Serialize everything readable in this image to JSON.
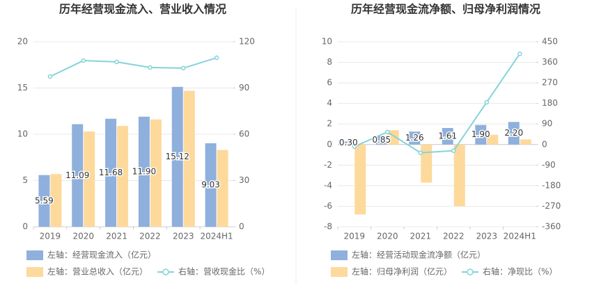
{
  "chart_data": [
    {
      "type": "bar-line",
      "title": "历年经营现金流入、营业收入情况",
      "categories": [
        "2019",
        "2020",
        "2021",
        "2022",
        "2023",
        "2024H1"
      ],
      "series": [
        {
          "name": "左轴：经营现金流入（亿元）",
          "type": "bar",
          "color": "#8fb0dd",
          "values": [
            5.59,
            11.09,
            11.68,
            11.9,
            15.12,
            9.03
          ],
          "value_labels": [
            "5.59",
            "11.09",
            "11.68",
            "11.90",
            "15.12",
            "9.03"
          ]
        },
        {
          "name": "左轴：营业总收入（亿元）",
          "type": "bar",
          "color": "#fdd99b",
          "values": [
            5.7,
            10.3,
            10.9,
            11.6,
            14.7,
            8.3
          ]
        },
        {
          "name": "右轴：营收现金比（%）",
          "type": "line",
          "axis": "y2",
          "color": "#84d3da",
          "values": [
            97.4,
            107.8,
            106.9,
            103.3,
            102.9,
            109.6
          ]
        }
      ],
      "ylim": [
        0,
        20
      ],
      "yticks": [
        0,
        5,
        10,
        15,
        20
      ],
      "y2lim": [
        0,
        120
      ],
      "y2ticks": [
        0,
        30,
        60,
        90,
        120
      ],
      "grid": true
    },
    {
      "type": "bar-line",
      "title": "历年经营现金流净额、归母净利润情况",
      "categories": [
        "2019",
        "2020",
        "2021",
        "2022",
        "2023",
        "2024H1"
      ],
      "series": [
        {
          "name": "左轴：经营活动现金流净额（亿元）",
          "type": "bar",
          "color": "#8fb0dd",
          "values": [
            0.3,
            0.85,
            1.26,
            1.61,
            1.9,
            2.2
          ],
          "value_labels": [
            "0.30",
            "0.85",
            "1.26",
            "1.61",
            "1.90",
            "2.20"
          ]
        },
        {
          "name": "左轴：归母净利润（亿元）",
          "type": "bar",
          "color": "#fdd99b",
          "values": [
            -6.8,
            1.4,
            -3.7,
            -6.0,
            0.95,
            0.5
          ]
        },
        {
          "name": "右轴：净现比（%）",
          "type": "line",
          "axis": "y2",
          "color": "#84d3da",
          "values": [
            -9,
            55,
            -36,
            -27,
            185,
            397
          ]
        }
      ],
      "ylim": [
        -8,
        10
      ],
      "yticks": [
        -8,
        -6,
        -4,
        -2,
        0,
        2,
        4,
        6,
        8,
        10
      ],
      "y2lim": [
        -360,
        450
      ],
      "y2ticks": [
        -360,
        -270,
        -180,
        -90,
        0,
        90,
        180,
        270,
        360,
        450
      ],
      "grid": true
    }
  ]
}
